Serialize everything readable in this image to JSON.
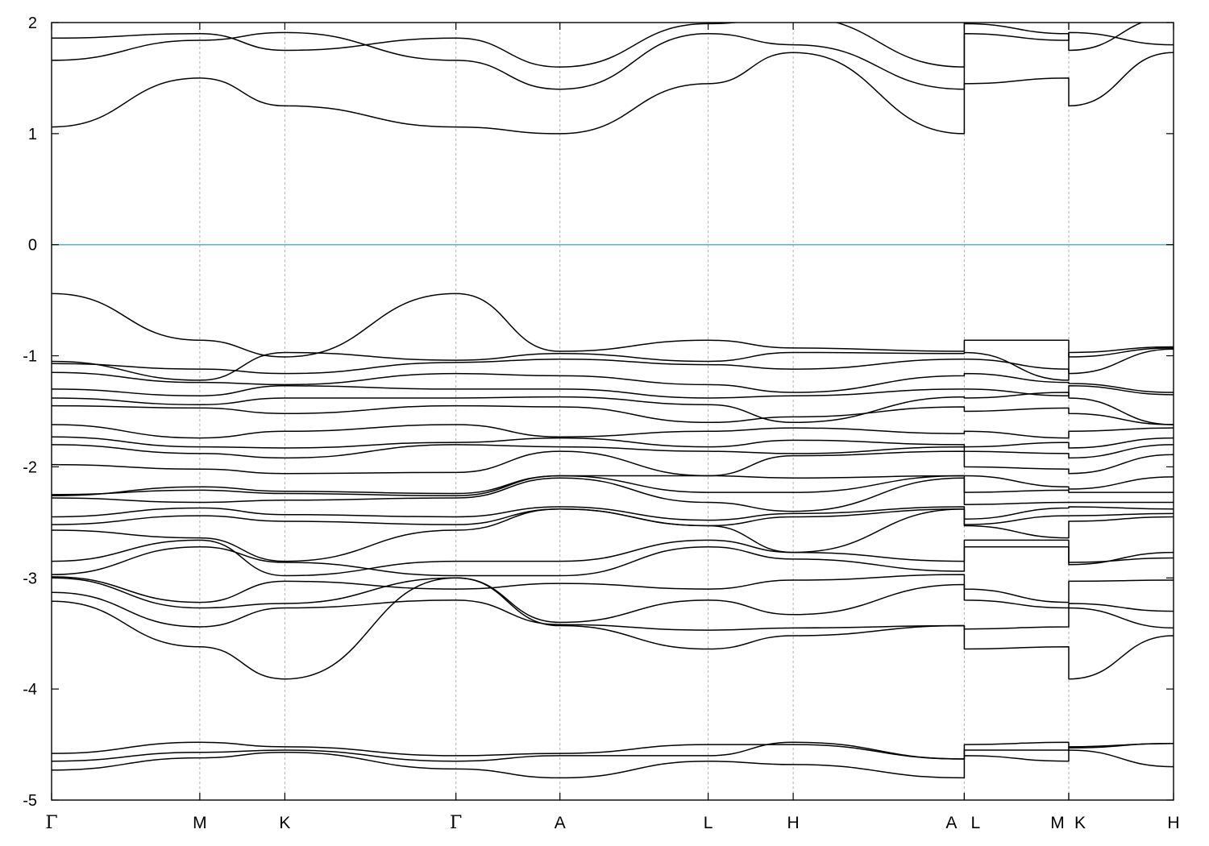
{
  "chart_data": {
    "type": "line",
    "title": "",
    "xlabel": "",
    "ylabel": "",
    "ylim": [
      -5,
      2
    ],
    "yticks": [
      -5,
      -4,
      -3,
      -2,
      -1,
      0,
      1,
      2
    ],
    "grid": "vertical dashed lines at high-symmetry points",
    "fermi_level": 0,
    "colors": {
      "bands": "#000000",
      "fermi_line": "#5fb2c8",
      "grid": "#b0b0b0"
    },
    "kpoints": [
      {
        "label": "Γ",
        "x": 0
      },
      {
        "label": "M",
        "x": 0.1321
      },
      {
        "label": "K",
        "x": 0.2079
      },
      {
        "label": "Γ",
        "x": 0.3604
      },
      {
        "label": "A",
        "x": 0.4531
      },
      {
        "label": "L",
        "x": 0.5852
      },
      {
        "label": "H",
        "x": 0.661
      },
      {
        "label": "A",
        "x": 0.8135
      },
      {
        "label": "L",
        "x": 0.8135
      },
      {
        "label": "M",
        "x": 0.9066
      },
      {
        "label": "K",
        "x": 0.9066
      },
      {
        "label": "H",
        "x": 1.0
      }
    ],
    "band_x": [
      0,
      0.1321,
      0.2079,
      0.3604,
      0.4531,
      0.5852,
      0.661,
      0.8135,
      0.8135,
      0.9066,
      0.9066,
      1.0
    ],
    "series": [
      {
        "values": [
          -4.73,
          -4.62,
          -4.57,
          -4.72,
          -4.8,
          -4.65,
          -4.68,
          -4.8,
          -4.6,
          -4.65,
          -4.52,
          -4.49
        ]
      },
      {
        "values": [
          -4.65,
          -4.57,
          -4.55,
          -4.65,
          -4.6,
          -4.6,
          -4.48,
          -4.63,
          -4.55,
          -4.55,
          -4.55,
          -4.7
        ]
      },
      {
        "values": [
          -4.58,
          -4.48,
          -4.52,
          -4.6,
          -4.58,
          -4.5,
          -4.5,
          -4.63,
          -4.5,
          -4.48,
          -4.53,
          -4.49
        ]
      },
      {
        "values": [
          -3.21,
          -3.62,
          -3.91,
          -3.0,
          -3.43,
          -3.64,
          -3.52,
          -3.43,
          -3.64,
          -3.62,
          -3.91,
          -3.52
        ]
      },
      {
        "values": [
          -3.13,
          -3.44,
          -3.27,
          -3.2,
          -3.42,
          -3.47,
          -3.45,
          -3.43,
          -3.46,
          -3.44,
          -3.27,
          -3.45
        ]
      },
      {
        "values": [
          -3.0,
          -3.27,
          -3.23,
          -3.0,
          -3.4,
          -3.2,
          -3.33,
          -3.06,
          -3.2,
          -3.27,
          -3.23,
          -3.3
        ]
      },
      {
        "values": [
          -2.99,
          -3.22,
          -3.03,
          -3.1,
          -3.05,
          -3.1,
          -3.02,
          -2.97,
          -3.1,
          -3.22,
          -3.03,
          -3.02
        ]
      },
      {
        "values": [
          -2.97,
          -2.72,
          -2.86,
          -2.98,
          -2.98,
          -2.72,
          -2.83,
          -2.94,
          -2.72,
          -2.72,
          -2.86,
          -2.82
        ]
      },
      {
        "values": [
          -2.85,
          -2.66,
          -2.98,
          -2.85,
          -2.85,
          -2.66,
          -2.77,
          -2.85,
          -2.66,
          -2.66,
          -2.88,
          -2.77
        ]
      },
      {
        "values": [
          -2.57,
          -2.64,
          -2.85,
          -2.57,
          -2.38,
          -2.53,
          -2.77,
          -2.38,
          -2.53,
          -2.64,
          -2.49,
          -2.45
        ]
      },
      {
        "values": [
          -2.52,
          -2.44,
          -2.49,
          -2.52,
          -2.38,
          -2.53,
          -2.45,
          -2.38,
          -2.52,
          -2.44,
          -2.44,
          -2.42
        ]
      },
      {
        "values": [
          -2.45,
          -2.37,
          -2.43,
          -2.45,
          -2.36,
          -2.48,
          -2.42,
          -2.36,
          -2.47,
          -2.37,
          -2.36,
          -2.38
        ]
      },
      {
        "values": [
          -2.28,
          -2.32,
          -2.3,
          -2.28,
          -2.1,
          -2.32,
          -2.4,
          -2.1,
          -2.34,
          -2.32,
          -2.32,
          -2.32
        ]
      },
      {
        "values": [
          -2.25,
          -2.21,
          -2.24,
          -2.26,
          -2.08,
          -2.23,
          -2.23,
          -2.08,
          -2.23,
          -2.21,
          -2.23,
          -2.23
        ]
      },
      {
        "values": [
          -2.26,
          -2.18,
          -2.22,
          -2.24,
          -2.08,
          -2.08,
          -2.1,
          -2.08,
          -2.08,
          -2.18,
          -2.2,
          -2.09
        ]
      },
      {
        "values": [
          -1.98,
          -2.02,
          -2.06,
          -2.05,
          -1.86,
          -2.08,
          -1.9,
          -1.86,
          -2.0,
          -2.02,
          -2.06,
          -1.89
        ]
      },
      {
        "values": [
          -1.8,
          -1.88,
          -1.92,
          -1.8,
          -1.82,
          -1.86,
          -1.88,
          -1.82,
          -1.86,
          -1.88,
          -1.92,
          -1.8
        ]
      },
      {
        "values": [
          -1.73,
          -1.82,
          -1.83,
          -1.78,
          -1.74,
          -1.82,
          -1.76,
          -1.8,
          -1.82,
          -1.78,
          -1.83,
          -1.74
        ]
      },
      {
        "values": [
          -1.62,
          -1.74,
          -1.68,
          -1.62,
          -1.73,
          -1.68,
          -1.65,
          -1.7,
          -1.68,
          -1.74,
          -1.68,
          -1.65
        ]
      },
      {
        "values": [
          -1.45,
          -1.47,
          -1.52,
          -1.45,
          -1.46,
          -1.6,
          -1.55,
          -1.46,
          -1.5,
          -1.47,
          -1.52,
          -1.62
        ]
      },
      {
        "values": [
          -1.38,
          -1.44,
          -1.38,
          -1.38,
          -1.37,
          -1.44,
          -1.6,
          -1.37,
          -1.38,
          -1.33,
          -1.38,
          -1.62
        ]
      },
      {
        "values": [
          -1.3,
          -1.36,
          -1.27,
          -1.3,
          -1.3,
          -1.38,
          -1.36,
          -1.3,
          -1.3,
          -1.36,
          -1.27,
          -1.35
        ]
      },
      {
        "values": [
          -1.15,
          -1.24,
          -1.26,
          -1.16,
          -1.18,
          -1.26,
          -1.33,
          -1.18,
          -1.16,
          -1.24,
          -1.25,
          -1.33
        ]
      },
      {
        "values": [
          -1.07,
          -1.12,
          -1.16,
          -1.06,
          -1.03,
          -1.08,
          -1.12,
          -1.03,
          -1.03,
          -1.12,
          -1.16,
          -0.94
        ]
      },
      {
        "values": [
          -1.05,
          -1.22,
          -0.97,
          -1.04,
          -0.98,
          -1.05,
          -0.97,
          -0.98,
          -0.97,
          -1.22,
          -0.97,
          -0.92
        ]
      },
      {
        "values": [
          -0.44,
          -0.86,
          -1.01,
          -0.44,
          -0.96,
          -0.86,
          -0.93,
          -0.96,
          -0.86,
          -0.86,
          -1.01,
          -0.93
        ]
      },
      {
        "values": [
          1.06,
          1.5,
          1.25,
          1.06,
          1.0,
          1.45,
          1.73,
          1.0,
          1.45,
          1.5,
          1.25,
          1.73
        ]
      },
      {
        "values": [
          1.66,
          1.84,
          1.91,
          1.66,
          1.4,
          1.9,
          1.8,
          1.4,
          1.9,
          1.84,
          1.91,
          1.8
        ]
      },
      {
        "values": [
          1.86,
          1.9,
          1.75,
          1.86,
          1.6,
          1.99,
          2.05,
          1.6,
          1.99,
          1.9,
          1.75,
          2.05
        ]
      }
    ]
  }
}
